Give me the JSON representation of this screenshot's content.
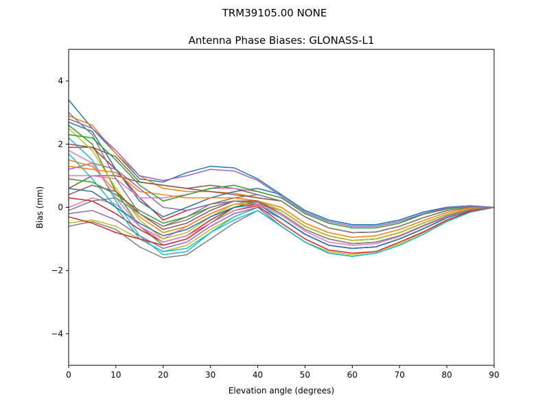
{
  "chart_data": {
    "type": "line",
    "suptitle": "TRM39105.00     NONE",
    "title": "Antenna Phase Biases: GLONASS-L1",
    "xlabel": "Elevation angle (degrees)",
    "ylabel": "Bias (mm)",
    "xlim": [
      0,
      90
    ],
    "ylim": [
      -5,
      5
    ],
    "xticks": [
      0,
      10,
      20,
      30,
      40,
      50,
      60,
      70,
      80,
      90
    ],
    "yticks": [
      -4,
      -2,
      0,
      2,
      4
    ],
    "ytick_labels": [
      "−4",
      "−2",
      "0",
      "2",
      "4"
    ],
    "grid": false,
    "colors": [
      "#1f77b4",
      "#ff7f0e",
      "#2ca02c",
      "#d62728",
      "#9467bd",
      "#8c564b",
      "#e377c2",
      "#7f7f7f",
      "#bcbd22",
      "#17becf"
    ],
    "x": [
      0,
      5,
      10,
      15,
      20,
      25,
      30,
      35,
      40,
      45,
      50,
      55,
      60,
      65,
      70,
      75,
      80,
      85,
      90
    ],
    "series": [
      {
        "values": [
          3.4,
          2.5,
          1.7,
          0.9,
          0.8,
          1.1,
          1.3,
          1.25,
          0.9,
          0.4,
          -0.1,
          -0.4,
          -0.55,
          -0.55,
          -0.4,
          -0.15,
          0.0,
          0.05,
          0
        ]
      },
      {
        "values": [
          2.9,
          2.6,
          1.7,
          1.0,
          0.6,
          0.5,
          0.5,
          0.45,
          0.3,
          0.2,
          -0.3,
          -0.65,
          -0.8,
          -0.78,
          -0.6,
          -0.33,
          -0.1,
          0.0,
          0
        ]
      },
      {
        "values": [
          2.6,
          2.0,
          0.5,
          -0.6,
          -1.2,
          -1.0,
          -0.5,
          0.0,
          0.2,
          -0.1,
          -0.6,
          -0.9,
          -1.05,
          -1.0,
          -0.8,
          -0.5,
          -0.22,
          -0.05,
          0
        ]
      },
      {
        "values": [
          1.9,
          1.9,
          1.2,
          0.3,
          -0.4,
          -0.1,
          0.1,
          0.3,
          0.2,
          -0.1,
          -0.6,
          -0.9,
          -1.05,
          -1.0,
          -0.8,
          -0.5,
          -0.22,
          -0.05,
          0
        ]
      },
      {
        "values": [
          1.2,
          1.4,
          1.2,
          0.6,
          0.0,
          -0.1,
          0.1,
          0.2,
          0.1,
          -0.35,
          -0.85,
          -1.2,
          -1.3,
          -1.25,
          -1.0,
          -0.68,
          -0.33,
          -0.1,
          0
        ]
      },
      {
        "values": [
          0.6,
          1.0,
          1.0,
          0.8,
          0.7,
          0.6,
          0.5,
          0.4,
          0.3,
          0.2,
          -0.3,
          -0.65,
          -0.8,
          -0.78,
          -0.6,
          -0.33,
          -0.1,
          0.0,
          0
        ]
      },
      {
        "values": [
          0.0,
          0.3,
          0.1,
          -0.6,
          -1.0,
          -0.6,
          -0.2,
          0.1,
          0.1,
          -0.35,
          -0.85,
          -1.2,
          -1.3,
          -1.25,
          -1.0,
          -0.68,
          -0.33,
          -0.1,
          0
        ]
      },
      {
        "values": [
          -0.6,
          -0.45,
          -0.7,
          -1.25,
          -1.6,
          -1.5,
          -1.0,
          -0.5,
          -0.1,
          -0.6,
          -1.1,
          -1.45,
          -1.55,
          -1.45,
          -1.2,
          -0.85,
          -0.45,
          -0.15,
          0
        ]
      },
      {
        "values": [
          -0.5,
          -0.4,
          -0.6,
          -1.0,
          -1.4,
          -1.2,
          -0.7,
          -0.3,
          0.0,
          -0.6,
          -1.1,
          -1.4,
          -1.5,
          -1.4,
          -1.15,
          -0.8,
          -0.42,
          -0.13,
          0
        ]
      },
      {
        "values": [
          2.2,
          1.5,
          0.2,
          -0.9,
          -1.5,
          -1.4,
          -0.8,
          -0.3,
          0.0,
          -0.35,
          -0.85,
          -1.2,
          -1.3,
          -1.25,
          -1.0,
          -0.68,
          -0.33,
          -0.1,
          0
        ]
      },
      {
        "values": [
          2.7,
          2.4,
          1.2,
          0.2,
          -0.3,
          0.0,
          0.3,
          0.5,
          0.6,
          0.4,
          -0.1,
          -0.4,
          -0.55,
          -0.55,
          -0.4,
          -0.15,
          0.0,
          0.05,
          0
        ]
      },
      {
        "values": [
          1.5,
          1.3,
          0.5,
          -0.3,
          -0.8,
          -0.6,
          -0.2,
          0.1,
          0.1,
          -0.1,
          -0.6,
          -0.9,
          -1.05,
          -1.0,
          -0.8,
          -0.5,
          -0.22,
          -0.05,
          0
        ]
      },
      {
        "values": [
          0.9,
          0.8,
          0.4,
          -0.1,
          -0.5,
          -0.3,
          0.0,
          0.2,
          0.2,
          -0.1,
          -0.6,
          -0.9,
          -1.05,
          -1.0,
          -0.8,
          -0.5,
          -0.22,
          -0.05,
          0
        ]
      },
      {
        "values": [
          0.3,
          0.2,
          -0.2,
          -0.7,
          -1.1,
          -0.9,
          -0.4,
          0.0,
          0.1,
          -0.35,
          -0.85,
          -1.2,
          -1.3,
          -1.25,
          -1.0,
          -0.68,
          -0.33,
          -0.1,
          0
        ]
      },
      {
        "values": [
          -0.2,
          -0.1,
          -0.4,
          -0.9,
          -1.3,
          -1.1,
          -0.6,
          -0.2,
          0.0,
          -0.6,
          -1.1,
          -1.45,
          -1.55,
          -1.45,
          -1.2,
          -0.85,
          -0.45,
          -0.15,
          0
        ]
      },
      {
        "values": [
          2.0,
          1.9,
          1.6,
          0.8,
          0.7,
          0.6,
          0.7,
          0.6,
          0.4,
          0.2,
          -0.3,
          -0.65,
          -0.8,
          -0.78,
          -0.6,
          -0.33,
          -0.1,
          0.0,
          0
        ]
      },
      {
        "values": [
          1.0,
          1.0,
          0.9,
          0.3,
          0.3,
          0.4,
          0.6,
          0.6,
          0.5,
          0.3,
          -0.2,
          -0.5,
          -0.65,
          -0.65,
          -0.5,
          -0.22,
          -0.05,
          0.03,
          0
        ]
      },
      {
        "values": [
          3.0,
          2.3,
          0.9,
          -0.2,
          -0.6,
          -0.3,
          0.1,
          0.3,
          0.4,
          0.2,
          -0.3,
          -0.65,
          -0.8,
          -0.78,
          -0.6,
          -0.33,
          -0.1,
          0.0,
          0
        ]
      },
      {
        "values": [
          2.5,
          1.8,
          0.6,
          -0.4,
          -1.0,
          -0.8,
          -0.3,
          0.1,
          0.2,
          -0.1,
          -0.6,
          -0.9,
          -1.05,
          -1.0,
          -0.8,
          -0.5,
          -0.22,
          -0.05,
          0
        ]
      },
      {
        "values": [
          1.7,
          0.9,
          0.0,
          -1.0,
          -1.4,
          -1.3,
          -0.8,
          -0.4,
          -0.1,
          -0.6,
          -1.1,
          -1.45,
          -1.55,
          -1.45,
          -1.2,
          -0.85,
          -0.45,
          -0.15,
          0
        ]
      },
      {
        "values": [
          0.6,
          0.5,
          0.0,
          -0.5,
          -0.9,
          -0.7,
          -0.3,
          0.0,
          0.1,
          -0.35,
          -0.85,
          -1.2,
          -1.3,
          -1.25,
          -1.0,
          -0.68,
          -0.33,
          -0.1,
          0
        ]
      },
      {
        "values": [
          1.3,
          1.2,
          1.1,
          0.5,
          0.4,
          0.3,
          0.3,
          0.3,
          0.2,
          0.0,
          -0.5,
          -0.8,
          -0.95,
          -0.9,
          -0.7,
          -0.42,
          -0.16,
          -0.02,
          0
        ]
      },
      {
        "values": [
          2.3,
          2.2,
          1.5,
          0.7,
          0.2,
          0.4,
          0.6,
          0.7,
          0.5,
          0.3,
          -0.2,
          -0.5,
          -0.65,
          -0.65,
          -0.5,
          -0.22,
          -0.05,
          0.03,
          0
        ]
      },
      {
        "values": [
          -0.3,
          -0.5,
          -0.8,
          -1.0,
          -1.2,
          -1.0,
          -0.5,
          -0.1,
          0.05,
          -0.5,
          -1.0,
          -1.35,
          -1.45,
          -1.4,
          -1.1,
          -0.78,
          -0.4,
          -0.12,
          0
        ]
      },
      {
        "values": [
          2.8,
          2.5,
          1.8,
          1.0,
          0.85,
          1.0,
          1.2,
          1.15,
          0.85,
          0.35,
          -0.15,
          -0.45,
          -0.6,
          -0.6,
          -0.45,
          -0.2,
          -0.02,
          0.04,
          0
        ]
      },
      {
        "values": [
          0.4,
          0.7,
          0.5,
          -0.2,
          -0.7,
          -0.5,
          -0.1,
          0.2,
          0.2,
          -0.2,
          -0.7,
          -1.0,
          -1.15,
          -1.1,
          -0.9,
          -0.58,
          -0.27,
          -0.07,
          0
        ]
      },
      {
        "values": [
          1.8,
          1.4,
          0.3,
          -0.6,
          -1.1,
          -0.9,
          -0.5,
          -0.1,
          0.1,
          -0.25,
          -0.75,
          -1.1,
          -1.2,
          -1.15,
          -0.92,
          -0.6,
          -0.3,
          -0.08,
          0
        ]
      },
      {
        "values": [
          -0.1,
          0.2,
          0.3,
          -0.2,
          -0.6,
          -0.4,
          0.0,
          0.2,
          0.15,
          -0.2,
          -0.7,
          -1.0,
          -1.15,
          -1.1,
          -0.9,
          -0.58,
          -0.27,
          -0.07,
          0
        ]
      }
    ]
  }
}
